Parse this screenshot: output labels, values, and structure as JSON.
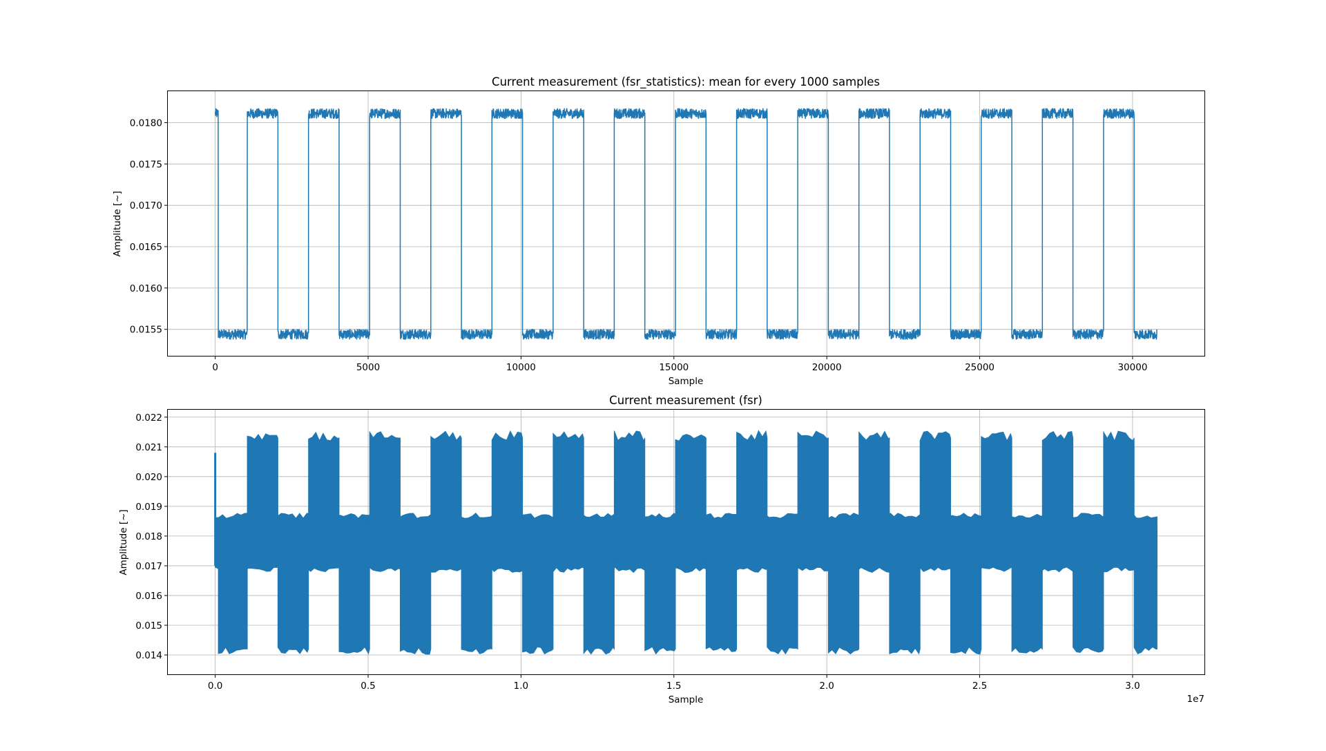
{
  "figure": {
    "background": "#ffffff",
    "line_color": "#1f77b4",
    "grid_color": "#b0b0b0"
  },
  "chart_data": [
    {
      "type": "line",
      "title": "Current measurement (fsr_statistics): mean for every 1000 samples",
      "xlabel": "Sample",
      "ylabel": "Amplitude [~]",
      "xlim": [
        -1550,
        32350
      ],
      "ylim": [
        0.01518,
        0.01838
      ],
      "xticks": [
        0,
        5000,
        10000,
        15000,
        20000,
        25000,
        30000
      ],
      "xtick_labels": [
        "0",
        "5000",
        "10000",
        "15000",
        "20000",
        "25000",
        "30000"
      ],
      "yticks": [
        0.0155,
        0.016,
        0.0165,
        0.017,
        0.0175,
        0.018
      ],
      "ytick_labels": [
        "0.0155",
        "0.0160",
        "0.0165",
        "0.0170",
        "0.0175",
        "0.0180"
      ],
      "grid": true,
      "series": [
        {
          "description": "square wave, ~1000-sample half periods, high ~0.01811, low ~0.01544",
          "high_level": 0.01811,
          "low_level": 0.01544,
          "segments": [
            {
              "start": 0,
              "end": 100,
              "level": "high"
            },
            {
              "start": 100,
              "end": 1050,
              "level": "low"
            },
            {
              "start": 1050,
              "end": 2050,
              "level": "high"
            },
            {
              "start": 2050,
              "end": 3050,
              "level": "low"
            },
            {
              "start": 3050,
              "end": 4050,
              "level": "high"
            },
            {
              "start": 4050,
              "end": 5050,
              "level": "low"
            },
            {
              "start": 5050,
              "end": 6050,
              "level": "high"
            },
            {
              "start": 6050,
              "end": 7050,
              "level": "low"
            },
            {
              "start": 7050,
              "end": 8050,
              "level": "high"
            },
            {
              "start": 8050,
              "end": 9050,
              "level": "low"
            },
            {
              "start": 9050,
              "end": 10050,
              "level": "high"
            },
            {
              "start": 10050,
              "end": 11050,
              "level": "low"
            },
            {
              "start": 11050,
              "end": 12050,
              "level": "high"
            },
            {
              "start": 12050,
              "end": 13050,
              "level": "low"
            },
            {
              "start": 13050,
              "end": 14050,
              "level": "high"
            },
            {
              "start": 14050,
              "end": 15050,
              "level": "low"
            },
            {
              "start": 15050,
              "end": 16050,
              "level": "high"
            },
            {
              "start": 16050,
              "end": 17050,
              "level": "low"
            },
            {
              "start": 17050,
              "end": 18050,
              "level": "high"
            },
            {
              "start": 18050,
              "end": 19050,
              "level": "low"
            },
            {
              "start": 19050,
              "end": 20050,
              "level": "high"
            },
            {
              "start": 20050,
              "end": 21050,
              "level": "low"
            },
            {
              "start": 21050,
              "end": 22050,
              "level": "high"
            },
            {
              "start": 22050,
              "end": 23050,
              "level": "low"
            },
            {
              "start": 23050,
              "end": 24050,
              "level": "high"
            },
            {
              "start": 24050,
              "end": 25050,
              "level": "low"
            },
            {
              "start": 25050,
              "end": 26050,
              "level": "high"
            },
            {
              "start": 26050,
              "end": 27050,
              "level": "low"
            },
            {
              "start": 27050,
              "end": 28050,
              "level": "high"
            },
            {
              "start": 28050,
              "end": 29050,
              "level": "low"
            },
            {
              "start": 29050,
              "end": 30050,
              "level": "high"
            },
            {
              "start": 30050,
              "end": 30800,
              "level": "low"
            }
          ]
        }
      ]
    },
    {
      "type": "area",
      "title": "Current measurement (fsr)",
      "xlabel": "Sample",
      "ylabel": "Amplitude [~]",
      "offset_label": "1e7",
      "xlim": [
        -1550000,
        32350000
      ],
      "ylim": [
        0.01335,
        0.02225
      ],
      "xticks": [
        0,
        5000000,
        10000000,
        15000000,
        20000000,
        25000000,
        30000000
      ],
      "xtick_labels": [
        "0.0",
        "0.5",
        "1.0",
        "1.5",
        "2.0",
        "2.5",
        "3.0"
      ],
      "yticks": [
        0.014,
        0.015,
        0.016,
        0.017,
        0.018,
        0.019,
        0.02,
        0.021,
        0.022
      ],
      "ytick_labels": [
        "0.014",
        "0.015",
        "0.016",
        "0.017",
        "0.018",
        "0.019",
        "0.020",
        "0.021",
        "0.022"
      ],
      "grid": true,
      "series": [
        {
          "description": "raw signal envelope (min/max bands); wide bands during active periods",
          "wide_band": [
            0.0142,
            0.0213
          ],
          "narrow_band": [
            0.0169,
            0.01865
          ],
          "active_intervals": [
            [
              1050000,
              2050000
            ],
            [
              3050000,
              4050000
            ],
            [
              5050000,
              6050000
            ],
            [
              7050000,
              8050000
            ],
            [
              9050000,
              10050000
            ],
            [
              11050000,
              12050000
            ],
            [
              13050000,
              14050000
            ],
            [
              15050000,
              16050000
            ],
            [
              17050000,
              18050000
            ],
            [
              19050000,
              20050000
            ],
            [
              21050000,
              22050000
            ],
            [
              23050000,
              24050000
            ],
            [
              25050000,
              26050000
            ],
            [
              27050000,
              28050000
            ],
            [
              29050000,
              30050000
            ]
          ],
          "wide_low_intervals": [
            [
              100000,
              1050000
            ],
            [
              2050000,
              3050000
            ],
            [
              4050000,
              5050000
            ],
            [
              6050000,
              7050000
            ],
            [
              8050000,
              9050000
            ],
            [
              10050000,
              11050000
            ],
            [
              12050000,
              13050000
            ],
            [
              14050000,
              15050000
            ],
            [
              16050000,
              17050000
            ],
            [
              18050000,
              19050000
            ],
            [
              20050000,
              21050000
            ],
            [
              22050000,
              23050000
            ],
            [
              24050000,
              25050000
            ],
            [
              26050000,
              27050000
            ],
            [
              28050000,
              29050000
            ],
            [
              30050000,
              30800000
            ]
          ],
          "x_end": 30800000
        }
      ]
    }
  ]
}
